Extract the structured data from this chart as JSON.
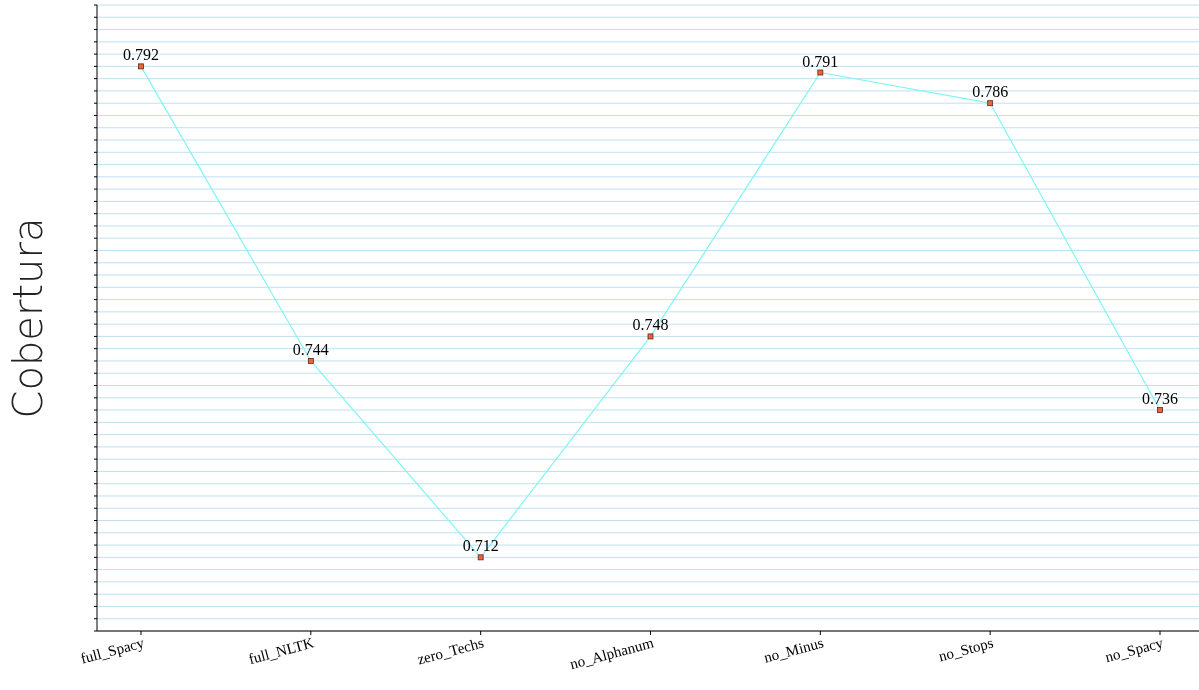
{
  "chart_data": {
    "type": "line",
    "ylabel": "Cobertura",
    "categories": [
      "full_Spacy",
      "full_NLTK",
      "zero_Techs",
      "no_Alphanum",
      "no_Minus",
      "no_Stops",
      "no_Spacy"
    ],
    "series": [
      {
        "color": "#7ff5f5",
        "values": [
          0.792,
          0.744,
          0.712,
          0.748,
          0.791,
          0.786,
          0.736
        ]
      }
    ],
    "marker": "square",
    "data_labels": true,
    "grid": "y",
    "tick_labels": "x",
    "ylim": [
      0.7,
      0.802
    ],
    "yticks": [
      {
        "value": 0.7,
        "label": null
      },
      {
        "value": 0.702,
        "label": null
      },
      {
        "value": 0.704,
        "label": null
      },
      {
        "value": 0.706,
        "label": null
      },
      {
        "value": 0.708,
        "label": null
      },
      {
        "value": 0.71,
        "label": null
      },
      {
        "value": 0.712,
        "label": null
      },
      {
        "value": 0.714,
        "label": null
      },
      {
        "value": 0.716,
        "label": null
      },
      {
        "value": 0.718,
        "label": null
      },
      {
        "value": 0.72,
        "label": null
      },
      {
        "value": 0.722,
        "label": null
      },
      {
        "value": 0.724,
        "label": null
      },
      {
        "value": 0.726,
        "label": null
      },
      {
        "value": 0.728,
        "label": null
      },
      {
        "value": 0.73,
        "label": null
      },
      {
        "value": 0.732,
        "label": null
      },
      {
        "value": 0.734,
        "label": null
      },
      {
        "value": 0.736,
        "label": null
      },
      {
        "value": 0.738,
        "label": null
      },
      {
        "value": 0.74,
        "label": null
      },
      {
        "value": 0.742,
        "label": null
      },
      {
        "value": 0.744,
        "label": null
      },
      {
        "value": 0.746,
        "label": null
      },
      {
        "value": 0.748,
        "label": null
      },
      {
        "value": 0.75,
        "label": null
      },
      {
        "value": 0.752,
        "label": null
      },
      {
        "value": 0.754,
        "label": null
      },
      {
        "value": 0.756,
        "label": null
      },
      {
        "value": 0.758,
        "label": null
      },
      {
        "value": 0.76,
        "label": null
      },
      {
        "value": 0.762,
        "label": null
      },
      {
        "value": 0.764,
        "label": null
      },
      {
        "value": 0.766,
        "label": null
      },
      {
        "value": 0.768,
        "label": null
      },
      {
        "value": 0.77,
        "label": null
      },
      {
        "value": 0.772,
        "label": null
      },
      {
        "value": 0.774,
        "label": null
      },
      {
        "value": 0.776,
        "label": null
      },
      {
        "value": 0.778,
        "label": null
      },
      {
        "value": 0.78,
        "label": null
      },
      {
        "value": 0.782,
        "label": null
      },
      {
        "value": 0.784,
        "label": null
      },
      {
        "value": 0.786,
        "label": null
      },
      {
        "value": 0.788,
        "label": null
      },
      {
        "value": 0.79,
        "label": null
      },
      {
        "value": 0.792,
        "label": null
      },
      {
        "value": 0.794,
        "label": null
      },
      {
        "value": 0.796,
        "label": null
      },
      {
        "value": 0.798,
        "label": null
      },
      {
        "value": 0.8,
        "label": null
      },
      {
        "value": 0.802,
        "label": null
      }
    ]
  }
}
